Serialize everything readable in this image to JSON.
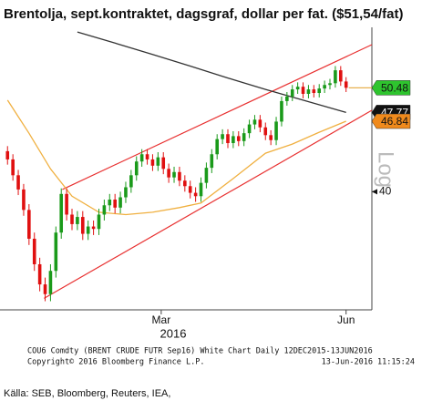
{
  "chart_data": {
    "type": "candlestick",
    "title": "Brentolja, sept.kontraktet, dagsgraf, dollar per fat. ($51,54/fat)",
    "xlabel": "2016",
    "log_scale": true,
    "ylim": [
      30.7,
      57.8
    ],
    "yticks": [
      40
    ],
    "xlim": [
      -1.4,
      67.8
    ],
    "xticks": [
      {
        "value": 28.6,
        "label": "Mar"
      },
      {
        "value": 63,
        "label": "Jun"
      }
    ],
    "up_color": "#1a9a1a",
    "down_color": "#e01010",
    "open": [
      43.8,
      43.0,
      41.5,
      40.2,
      38.4,
      36.0,
      34.0,
      32.5,
      31.8,
      33.5,
      36.5,
      39.8,
      38.0,
      37.2,
      37.8,
      36.4,
      37.0,
      36.8,
      38.0,
      38.8,
      39.3,
      38.6,
      39.5,
      40.4,
      41.5,
      42.8,
      43.5,
      43.0,
      42.4,
      43.2,
      42.1,
      41.3,
      41.8,
      41.0,
      40.5,
      39.9,
      39.6,
      40.8,
      42.2,
      43.5,
      45.0,
      45.5,
      44.6,
      45.3,
      44.8,
      45.6,
      46.5,
      47.0,
      46.2,
      45.4,
      44.9,
      46.8,
      49.0,
      49.5,
      50.3,
      50.6,
      49.8,
      50.3,
      49.9,
      50.4,
      50.8,
      51.0,
      52.5,
      51.2
    ],
    "high": [
      44.3,
      43.5,
      42.0,
      40.7,
      38.9,
      36.5,
      34.5,
      33.0,
      34.0,
      37.0,
      40.3,
      40.3,
      38.5,
      38.3,
      38.3,
      37.5,
      37.5,
      38.5,
      39.3,
      39.8,
      39.8,
      40.0,
      40.9,
      42.0,
      43.3,
      44.0,
      44.0,
      43.5,
      43.7,
      43.7,
      42.6,
      42.3,
      42.3,
      41.5,
      41.0,
      40.4,
      41.3,
      42.7,
      44.0,
      45.5,
      46.0,
      46.0,
      45.8,
      45.8,
      46.1,
      47.0,
      47.5,
      47.5,
      46.7,
      45.9,
      47.3,
      49.5,
      50.0,
      50.8,
      51.1,
      51.1,
      50.8,
      50.8,
      50.9,
      51.3,
      51.5,
      53.0,
      53.0,
      51.7
    ],
    "low": [
      42.5,
      41.0,
      39.7,
      37.9,
      35.5,
      33.5,
      32.0,
      31.3,
      31.3,
      33.0,
      36.0,
      37.5,
      36.7,
      36.7,
      35.9,
      35.9,
      36.3,
      36.3,
      37.5,
      38.3,
      38.1,
      38.1,
      39.0,
      39.9,
      41.0,
      42.3,
      42.5,
      41.9,
      41.9,
      41.6,
      40.8,
      40.8,
      40.5,
      40.0,
      39.4,
      39.1,
      39.1,
      40.3,
      41.7,
      43.0,
      44.5,
      44.1,
      44.1,
      44.3,
      44.3,
      45.1,
      46.0,
      45.7,
      44.9,
      44.4,
      44.4,
      46.3,
      48.5,
      49.0,
      49.8,
      49.3,
      49.3,
      49.4,
      49.4,
      49.9,
      50.3,
      50.5,
      50.7,
      50.0
    ],
    "close": [
      43.0,
      41.5,
      40.2,
      38.4,
      36.0,
      34.0,
      32.5,
      31.8,
      33.5,
      36.5,
      39.8,
      38.0,
      37.2,
      37.8,
      36.4,
      37.0,
      36.8,
      38.0,
      38.8,
      39.3,
      38.6,
      39.5,
      40.4,
      41.5,
      42.8,
      43.5,
      43.0,
      42.4,
      43.2,
      42.1,
      41.3,
      41.8,
      41.0,
      40.5,
      39.9,
      39.6,
      40.8,
      42.2,
      43.5,
      45.0,
      45.5,
      44.6,
      45.3,
      44.8,
      45.6,
      46.5,
      47.0,
      46.2,
      45.4,
      44.9,
      46.8,
      49.0,
      49.5,
      50.3,
      50.6,
      49.8,
      50.3,
      49.9,
      50.4,
      50.8,
      51.0,
      52.5,
      51.2,
      50.48
    ],
    "last_color": "#2ec42e",
    "lines": [
      {
        "color": "#333333",
        "label_color": "#111111",
        "x": [
          13,
          20,
          27,
          34,
          41,
          48,
          55,
          63
        ],
        "values": [
          57.2,
          55.8,
          54.4,
          53.0,
          51.6,
          50.3,
          49.1,
          47.77
        ]
      },
      {
        "color": "#f0b040",
        "label_color": "#f08a1c",
        "x": [
          0,
          4,
          8,
          12,
          17,
          22,
          27,
          32,
          36,
          42,
          48,
          53,
          58,
          63
        ],
        "values": [
          49.1,
          45.6,
          42.1,
          39.6,
          38.2,
          38.0,
          38.2,
          38.6,
          39.0,
          41.2,
          43.6,
          44.5,
          45.7,
          46.84
        ]
      }
    ],
    "trendlines": [
      {
        "color": "#e83030",
        "x": [
          10.2,
          67.8
        ],
        "values": [
          40.2,
          55.6
        ]
      },
      {
        "color": "#e83030",
        "x": [
          6.8,
          67.8
        ],
        "values": [
          31.5,
          48.0
        ]
      }
    ],
    "scale_label": "Log",
    "footer": [
      "COU6 Comdty (BRENT CRUDE FUTR  Sep16) White Chart  Daily 12DEC2015-13JUN2016",
      "Copyright© 2016 Bloomberg Finance L.P."
    ],
    "timestamp": "13-Jun-2016 11:15:24",
    "source": "Källa: SEB, Bloomberg, Reuters, IEA,"
  }
}
